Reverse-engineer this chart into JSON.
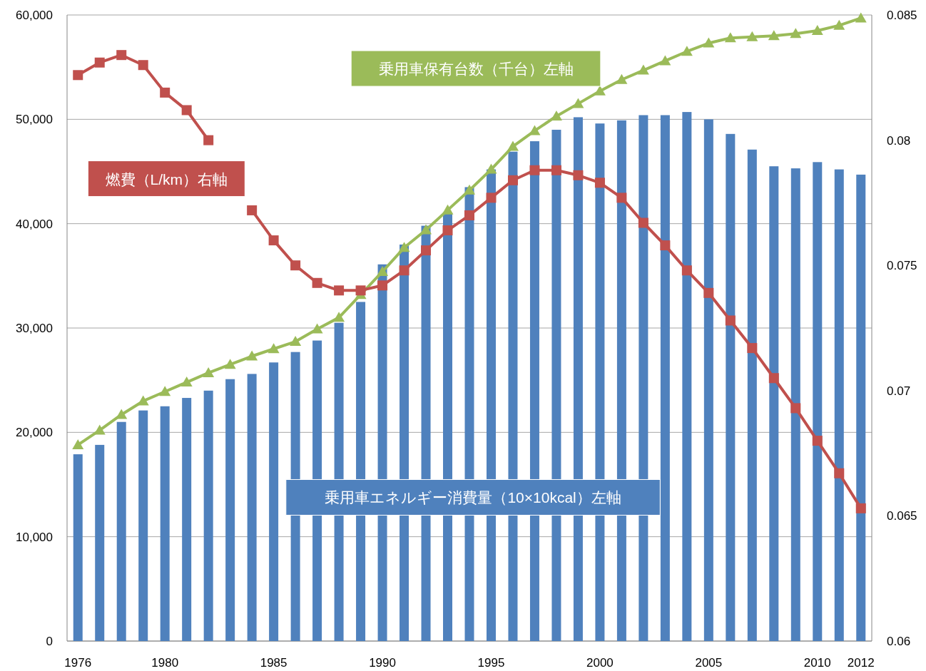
{
  "chart_data": {
    "type": "bar",
    "categories": [
      "1976",
      null,
      null,
      null,
      "1980",
      null,
      null,
      null,
      null,
      "1985",
      null,
      null,
      null,
      null,
      "1990",
      null,
      null,
      null,
      null,
      "1995",
      null,
      null,
      null,
      null,
      "2000",
      null,
      null,
      null,
      null,
      "2005",
      null,
      null,
      null,
      null,
      "2010",
      null,
      "2012"
    ],
    "series": [
      {
        "name": "乗用車エネルギー消費量（10×10kcal）左軸",
        "color": "#4f81bd",
        "values": [
          17900,
          18800,
          21000,
          22100,
          22500,
          23300,
          24000,
          25100,
          25600,
          26700,
          27700,
          28800,
          30500,
          32500,
          36100,
          38000,
          39800,
          41000,
          43500,
          45200,
          46900,
          47900,
          49000,
          50200,
          49600,
          49900,
          50400,
          50400,
          50700,
          50000,
          48600,
          47100,
          45500,
          45300,
          45900,
          45200,
          44700
        ]
      },
      {
        "name": "乗用車保有台数（千台）左軸",
        "type": "line",
        "color": "#9bbb59",
        "marker": "triangle",
        "values": [
          18800,
          20200,
          21700,
          23000,
          23900,
          24800,
          25700,
          26500,
          27300,
          28000,
          28700,
          29900,
          31000,
          33200,
          35400,
          37700,
          39400,
          41300,
          43200,
          45200,
          47400,
          48900,
          50300,
          51500,
          52700,
          53800,
          54700,
          55600,
          56500,
          57300,
          57800,
          57900,
          58000,
          58200,
          58500,
          59000,
          59700
        ]
      },
      {
        "name": "燃費（L/km）右軸",
        "type": "line",
        "color": "#c0504d",
        "marker": "square",
        "axis": "y2",
        "values": [
          0.0826,
          0.0831,
          0.0834,
          0.083,
          0.0819,
          0.0812,
          0.08,
          null,
          0.0772,
          0.076,
          0.075,
          0.0743,
          0.074,
          0.074,
          0.0742,
          0.0748,
          0.0756,
          0.0764,
          0.077,
          0.0777,
          0.0784,
          0.0788,
          0.0788,
          0.0786,
          0.0783,
          0.0777,
          0.0767,
          0.0758,
          0.0748,
          0.0739,
          0.0728,
          0.0717,
          0.0705,
          0.0693,
          0.068,
          0.0667,
          0.0653
        ]
      }
    ],
    "ylim": [
      0,
      60000
    ],
    "yticks": [
      {
        "value": 0,
        "label": "0"
      },
      {
        "value": 10000,
        "label": "10,000"
      },
      {
        "value": 20000,
        "label": "20,000"
      },
      {
        "value": 30000,
        "label": "30,000"
      },
      {
        "value": 40000,
        "label": "40,000"
      },
      {
        "value": 50000,
        "label": "50,000"
      },
      {
        "value": 60000,
        "label": "60,000"
      }
    ],
    "y2lim": [
      0.06,
      0.085
    ],
    "y2ticks": [
      0.06,
      0.065,
      0.07,
      0.075,
      0.08,
      0.085
    ],
    "grid": "y"
  }
}
